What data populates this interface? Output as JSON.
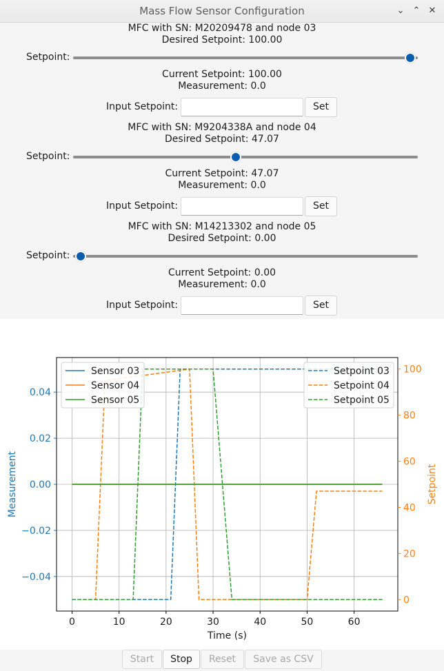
{
  "window": {
    "title": "Mass Flow Sensor Configuration",
    "buttons": [
      "minimize-icon",
      "maximize-icon",
      "close-icon"
    ]
  },
  "mfc": [
    {
      "heading": "MFC with SN: M20209478 and node 03",
      "desired": "Desired Setpoint: 100.00",
      "slider_label": "Setpoint:",
      "slider_value": 100,
      "current": "Current Setpoint: 100.00",
      "measurement": "Measurement: 0.0",
      "input_label": "Input Setpoint:",
      "input_value": "",
      "set_label": "Set"
    },
    {
      "heading": "MFC with SN: M9204338A and node 04",
      "desired": "Desired Setpoint: 47.07",
      "slider_label": "Setpoint:",
      "slider_value": 47.07,
      "current": "Current Setpoint: 47.07",
      "measurement": "Measurement: 0.0",
      "input_label": "Input Setpoint:",
      "input_value": "",
      "set_label": "Set"
    },
    {
      "heading": "MFC with SN: M14213302 and node 05",
      "desired": "Desired Setpoint: 0.00",
      "slider_label": "Setpoint:",
      "slider_value": 0,
      "current": "Current Setpoint: 0.00",
      "measurement": "Measurement: 0.0",
      "input_label": "Input Setpoint:",
      "input_value": "",
      "set_label": "Set"
    }
  ],
  "buttons": {
    "start": "Start",
    "stop": "Stop",
    "reset": "Reset",
    "save": "Save as CSV"
  },
  "colors": {
    "s03": "#1f77b4",
    "s04": "#ff7f0e",
    "s05": "#2ca02c",
    "slider_handle": "#0b5db0"
  },
  "chart_data": {
    "type": "line",
    "xlabel": "Time (s)",
    "ylabel": "Measurement",
    "y2label": "Setpoint",
    "xlim": [
      -3.3,
      69.3
    ],
    "ylim": [
      -0.055,
      0.055
    ],
    "y2lim": [
      -5,
      105
    ],
    "xticks": [
      0,
      10,
      20,
      30,
      40,
      50,
      60
    ],
    "yticks": [
      -0.04,
      -0.02,
      0.0,
      0.02,
      0.04
    ],
    "ytick_labels": [
      "−0.04",
      "−0.02",
      "0.00",
      "0.02",
      "0.04"
    ],
    "y2ticks": [
      0,
      20,
      40,
      60,
      80,
      100
    ],
    "grid": true,
    "legend_left": "upper-left",
    "legend_right": "upper-right",
    "measurement_series": [
      {
        "name": "Sensor 03",
        "color": "#1f77b4",
        "x": [
          0,
          66
        ],
        "y": [
          0.0,
          0.0
        ]
      },
      {
        "name": "Sensor 04",
        "color": "#ff7f0e",
        "x": [
          0,
          66
        ],
        "y": [
          0.0,
          0.0
        ]
      },
      {
        "name": "Sensor 05",
        "color": "#2ca02c",
        "x": [
          0,
          66
        ],
        "y": [
          0.0,
          0.0
        ]
      }
    ],
    "setpoint_series": [
      {
        "name": "Setpoint 03",
        "color": "#1f77b4",
        "x": [
          0,
          21,
          23,
          66
        ],
        "y": [
          0,
          0,
          100,
          100
        ]
      },
      {
        "name": "Setpoint 04",
        "color": "#ff7f0e",
        "x": [
          0,
          5,
          7,
          25,
          27,
          50,
          52,
          66
        ],
        "y": [
          0,
          0,
          95,
          100,
          0,
          0,
          47,
          47
        ]
      },
      {
        "name": "Setpoint 05",
        "color": "#2ca02c",
        "x": [
          0,
          13,
          15,
          30,
          34,
          66
        ],
        "y": [
          0,
          0,
          100,
          100,
          0,
          0
        ]
      }
    ]
  }
}
